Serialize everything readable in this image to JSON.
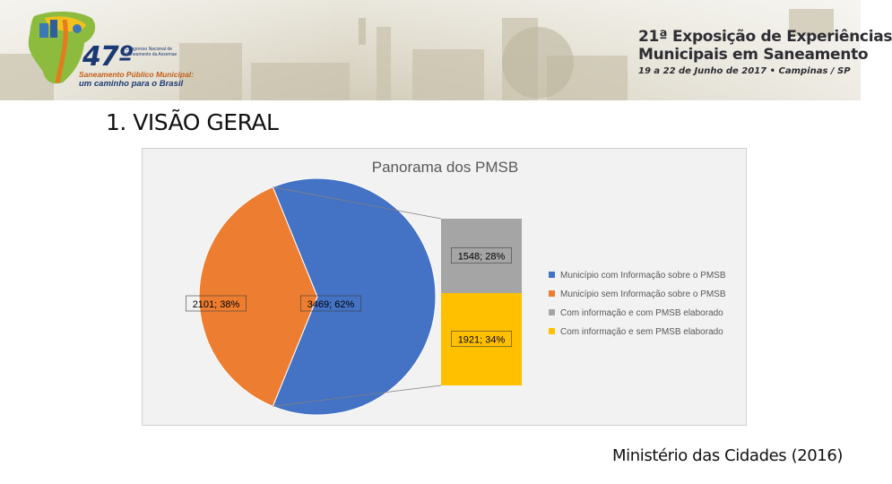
{
  "header": {
    "logo": {
      "number": "47º",
      "small_text": "Congresso Nacional de Saneamento da Assemae",
      "line1": "Saneamento Público Municipal:",
      "line2": "um caminho para o Brasil"
    },
    "event": {
      "line1": "21ª Exposição de Experiências",
      "line2": "Municipais em Saneamento",
      "line3": "19 a 22 de Junho de 2017 • Campinas / SP"
    }
  },
  "section_title": "1. VISÃO GERAL",
  "source": "Ministério das Cidades (2016)",
  "chart_data": {
    "type": "pie",
    "subtype": "bar-of-pie",
    "title": "Panorama dos PMSB",
    "legend_position": "right",
    "pie": [
      {
        "name": "Município com Informação sobre o PMSB",
        "value": 3469,
        "percent": 62,
        "label": "3469; 62%",
        "color": "#4472C4"
      },
      {
        "name": "Município sem Informação sobre o PMSB",
        "value": 2101,
        "percent": 38,
        "label": "2101; 38%",
        "color": "#ED7D31"
      }
    ],
    "bar_breakdown": [
      {
        "name": "Com informação e com PMSB elaborado",
        "value": 1548,
        "percent": 28,
        "label": "1548; 28%",
        "color": "#A5A5A5"
      },
      {
        "name": "Com informação e sem PMSB elaborado",
        "value": 1921,
        "percent": 34,
        "label": "1921; 34%",
        "color": "#FFC000"
      }
    ],
    "legend": [
      {
        "label": "Município com Informação sobre o PMSB",
        "color": "#4472C4"
      },
      {
        "label": "Município sem Informação sobre o PMSB",
        "color": "#ED7D31"
      },
      {
        "label": "Com informação e com PMSB elaborado",
        "color": "#A5A5A5"
      },
      {
        "label": "Com informação e sem PMSB elaborado",
        "color": "#FFC000"
      }
    ]
  }
}
